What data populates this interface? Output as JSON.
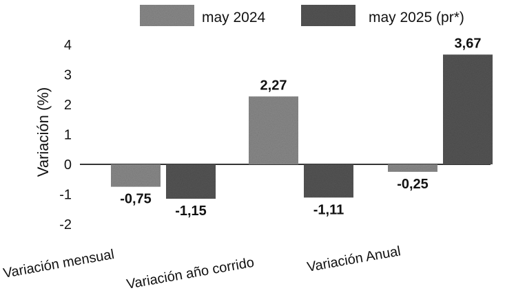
{
  "chart_data": {
    "type": "bar",
    "categories": [
      "Variación mensual",
      "Variación año corrido",
      "Variación Anual"
    ],
    "series": [
      {
        "name": "may 2024",
        "values": [
          -0.75,
          2.27,
          -0.25
        ],
        "labels": [
          "-0,75",
          "2,27",
          "-0,25"
        ],
        "color": "#8a8a8a"
      },
      {
        "name": "may 2025 (pr*)",
        "values": [
          -1.15,
          -1.11,
          3.67
        ],
        "labels": [
          "-1,15",
          "-1,11",
          "3,67"
        ],
        "color": "#555555"
      }
    ],
    "ylabel": "Variación (%)",
    "yticks": [
      4,
      3,
      2,
      1,
      0,
      -1,
      -2
    ],
    "ylim": [
      -2,
      4
    ],
    "legend": "top-right",
    "grid": false
  }
}
